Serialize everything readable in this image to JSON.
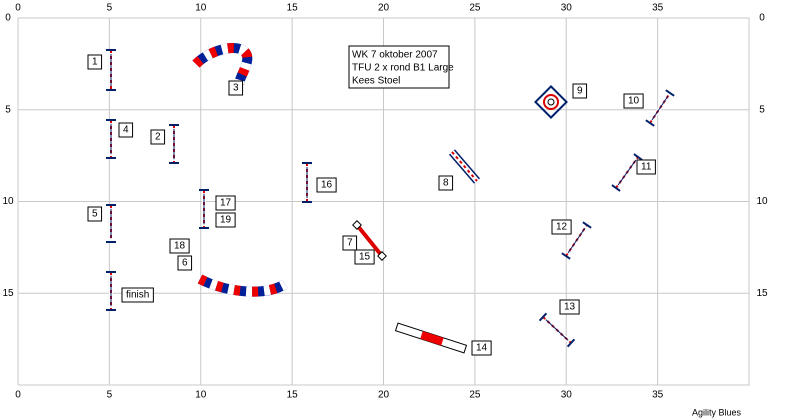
{
  "axes": {
    "xlim": [
      0,
      40
    ],
    "ylim": [
      0,
      20
    ],
    "xticks": [
      0,
      5,
      10,
      15,
      20,
      25,
      30,
      35
    ],
    "yticks": [
      0,
      5,
      10,
      15
    ]
  },
  "info": [
    "WK 7 oktober 2007",
    "TFU 2 x rond B1 Large",
    "Kees Stoel"
  ],
  "labels": [
    "1",
    "2",
    "3",
    "4",
    "5",
    "6",
    "7",
    "8",
    "9",
    "10",
    "11",
    "12",
    "13",
    "14",
    "15",
    "16",
    "17",
    "18",
    "19",
    "finish"
  ],
  "footer": "Agility Blues"
}
